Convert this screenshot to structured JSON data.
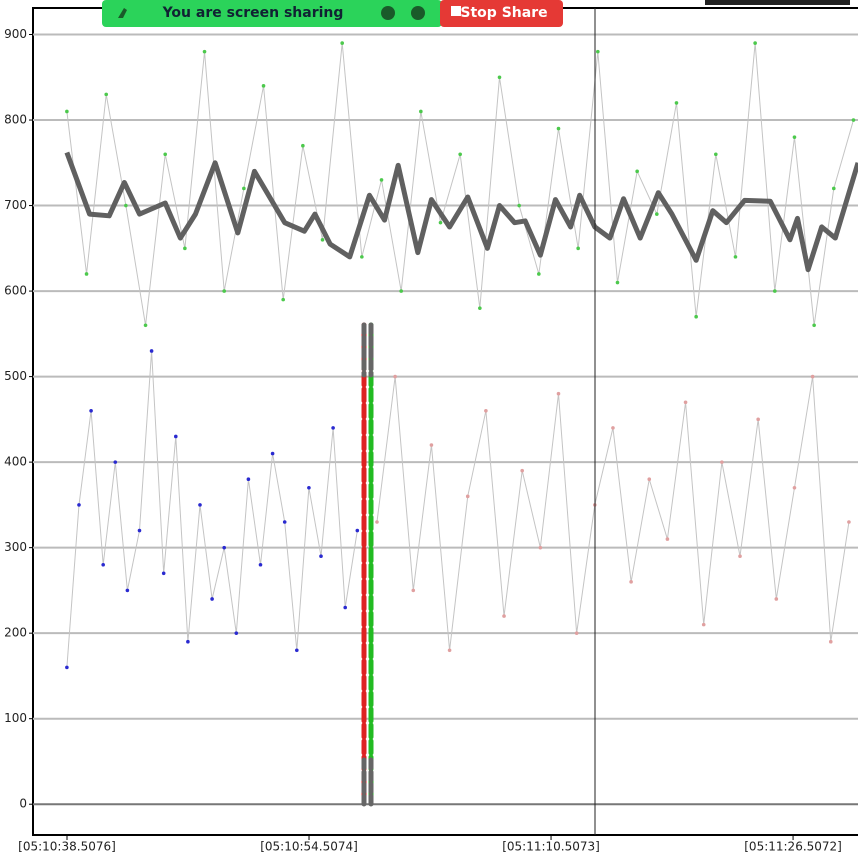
{
  "banner": {
    "message": "You are screen sharing",
    "button": "Stop Share"
  },
  "chart_data": {
    "type": "line",
    "xlim": [
      18636.26,
      18690.8
    ],
    "xticks": [
      {
        "value": 18638.5076,
        "label": "[05:10:38.5076]"
      },
      {
        "value": 18654.5074,
        "label": "[05:10:54.5074]"
      },
      {
        "value": 18670.5073,
        "label": "[05:11:10.5073]"
      },
      {
        "value": 18686.5072,
        "label": "[05:11:26.5072]"
      }
    ],
    "ylim": [
      -36,
      931
    ],
    "yticks": [
      0,
      100,
      200,
      300,
      400,
      500,
      600,
      700,
      800,
      900
    ],
    "grid": true,
    "series": [
      {
        "color": "#4cc94c",
        "x": [
          18638.5,
          18639.8,
          18641.1,
          18642.4,
          18643.7,
          18645.0,
          18646.3,
          18647.6,
          18648.9,
          18650.2,
          18651.5,
          18652.8,
          18654.1,
          18655.4,
          18656.7,
          18658.0,
          18659.3,
          18660.6,
          18661.9,
          18663.2,
          18664.5,
          18665.8,
          18667.1,
          18668.4,
          18669.7,
          18671.0,
          18672.3,
          18673.6,
          18674.9,
          18676.2,
          18677.5,
          18678.8,
          18680.1,
          18681.4,
          18682.7,
          18684.0,
          18685.3,
          18686.6,
          18687.9,
          18689.2,
          18690.5
        ],
        "values": [
          810,
          620,
          830,
          700,
          560,
          760,
          650,
          880,
          600,
          720,
          840,
          590,
          770,
          660,
          890,
          640,
          730,
          600,
          810,
          680,
          760,
          580,
          850,
          700,
          620,
          790,
          650,
          880,
          610,
          740,
          690,
          820,
          570,
          760,
          640,
          890,
          600,
          780,
          560,
          720,
          800
        ]
      },
      {
        "color": "#2a2ad0",
        "x": [
          18638.5,
          18639.3,
          18640.1,
          18640.9,
          18641.7,
          18642.5,
          18643.3,
          18644.1,
          18644.9,
          18645.7,
          18646.5,
          18647.3,
          18648.1,
          18648.9,
          18649.7,
          18650.5,
          18651.3,
          18652.1,
          18652.9,
          18653.7,
          18654.5,
          18655.3,
          18656.1,
          18656.9,
          18657.7
        ],
        "values": [
          160,
          350,
          460,
          280,
          400,
          250,
          320,
          530,
          270,
          430,
          190,
          350,
          240,
          300,
          200,
          380,
          280,
          410,
          330,
          180,
          370,
          290,
          440,
          230,
          320
        ]
      },
      {
        "color": "#e0a0a0",
        "x": [
          18659.0,
          18660.2,
          18661.4,
          18662.6,
          18663.8,
          18665.0,
          18666.2,
          18667.4,
          18668.6,
          18669.8,
          18671.0,
          18672.2,
          18673.4,
          18674.6,
          18675.8,
          18677.0,
          18678.2,
          18679.4,
          18680.6,
          18681.8,
          18683.0,
          18684.2,
          18685.4,
          18686.6,
          18687.8,
          18689.0,
          18690.2
        ],
        "values": [
          330,
          500,
          250,
          420,
          180,
          360,
          460,
          220,
          390,
          300,
          480,
          200,
          350,
          440,
          260,
          380,
          310,
          470,
          210,
          400,
          290,
          450,
          240,
          370,
          500,
          190,
          330
        ]
      },
      {
        "color": "#606060",
        "x": [
          18638.5,
          18640.0,
          18641.3,
          18642.3,
          18643.3,
          18645.0,
          18646.0,
          18647.0,
          18648.3,
          18649.8,
          18650.9,
          18652.9,
          18654.2,
          18654.9,
          18655.9,
          18657.2,
          18658.5,
          18659.5,
          18660.4,
          18661.7,
          18662.6,
          18663.8,
          18665.0,
          18666.3,
          18667.1,
          18668.1,
          18668.8,
          18669.8,
          18670.8,
          18671.8,
          18672.4,
          18673.4,
          18674.4,
          18675.3,
          18676.4,
          18677.6,
          18678.5,
          18680.1,
          18681.2,
          18682.1,
          18683.3,
          18685.0,
          18686.3,
          18686.8,
          18687.5,
          18688.4,
          18689.3,
          18690.8
        ],
        "values": [
          762,
          690,
          688,
          727,
          690,
          703,
          662,
          690,
          750,
          668,
          740,
          680,
          670,
          690,
          655,
          640,
          712,
          683,
          747,
          645,
          707,
          675,
          710,
          650,
          700,
          680,
          682,
          642,
          707,
          675,
          712,
          675,
          662,
          708,
          662,
          715,
          690,
          636,
          694,
          680,
          706,
          705,
          660,
          685,
          625,
          675,
          662,
          750
        ]
      }
    ]
  }
}
